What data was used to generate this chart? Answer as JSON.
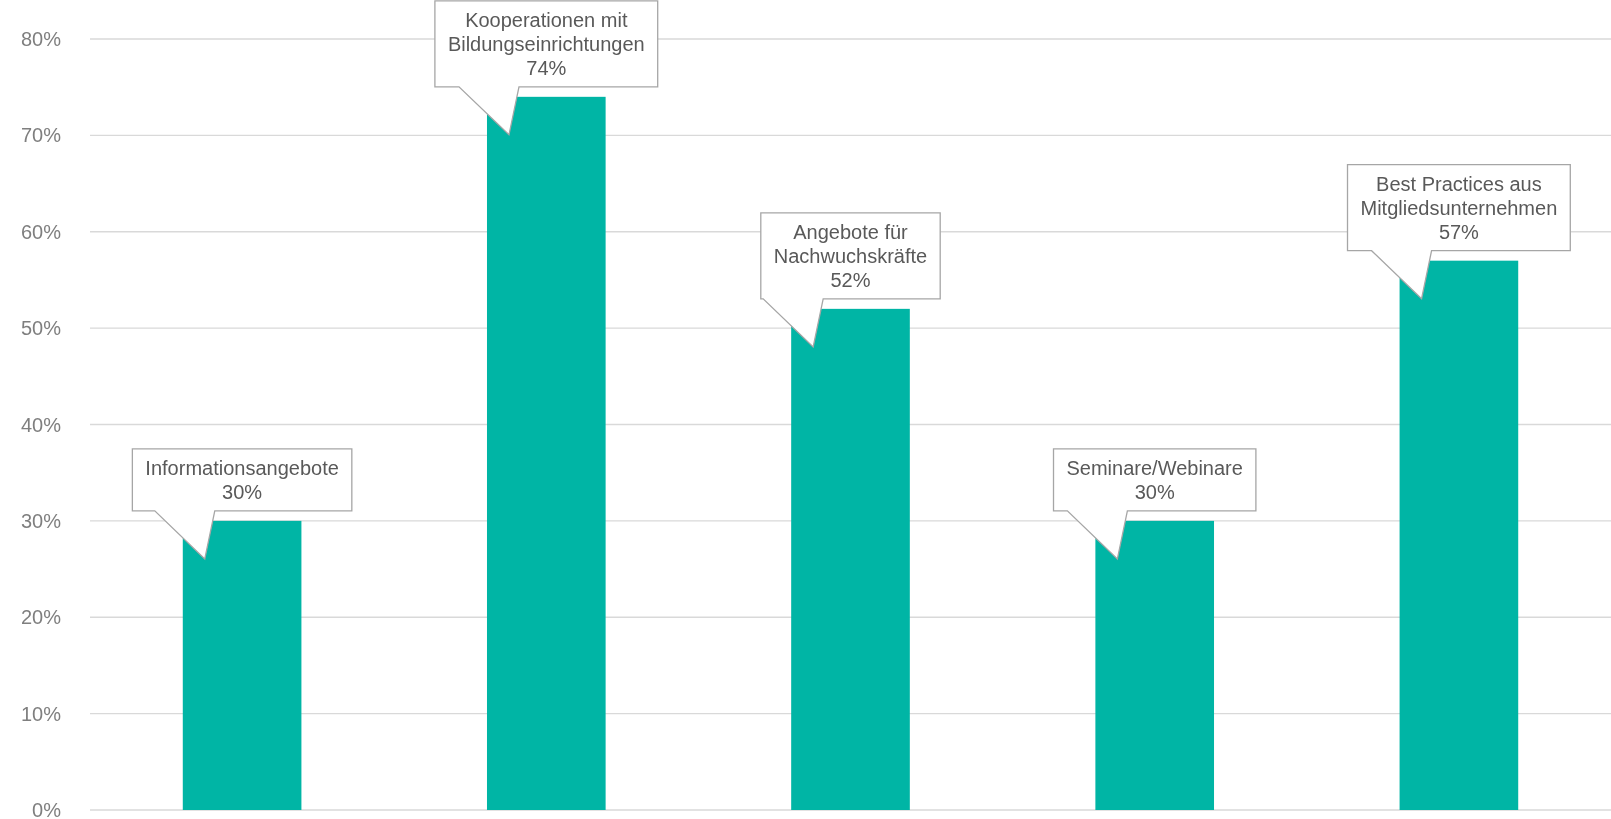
{
  "chart_data": {
    "type": "bar",
    "categories": [
      "Informationsangebote",
      "Kooperationen mit Bildungseinrichtungen",
      "Angebote für Nachwuchskräfte",
      "Seminare/Webinare",
      "Best Practices aus Mitgliedsunternehmen"
    ],
    "values": [
      30,
      74,
      52,
      30,
      57
    ],
    "value_labels": [
      "30%",
      "74%",
      "52%",
      "30%",
      "57%"
    ],
    "color": "#00b5a5",
    "ylim": [
      0,
      80
    ],
    "yticks": [
      {
        "value": 0,
        "label": "0%"
      },
      {
        "value": 10,
        "label": "10%"
      },
      {
        "value": 20,
        "label": "20%"
      },
      {
        "value": 30,
        "label": "30%"
      },
      {
        "value": 40,
        "label": "40%"
      },
      {
        "value": 50,
        "label": "50%"
      },
      {
        "value": 60,
        "label": "60%"
      },
      {
        "value": 70,
        "label": "70%"
      },
      {
        "value": 80,
        "label": "80%"
      }
    ],
    "grid": "y",
    "tick_labels": "y"
  }
}
